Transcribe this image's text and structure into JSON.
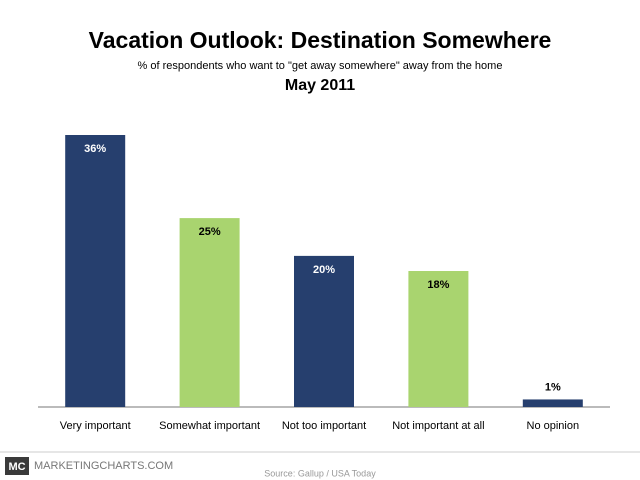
{
  "chart_data": {
    "type": "bar",
    "title": "Vacation Outlook: Destination Somewhere",
    "subtitle": "% of respondents who want to \"get away somewhere\" away from the home",
    "period": "May 2011",
    "categories": [
      "Very important",
      "Somewhat important",
      "Not too important",
      "Not important at all",
      "No opinion"
    ],
    "values": [
      36,
      25,
      20,
      18,
      1
    ],
    "value_labels": [
      "36%",
      "25%",
      "20%",
      "18%",
      "1%"
    ],
    "colors": [
      "#263f6e",
      "#a9d46f",
      "#263f6e",
      "#a9d46f",
      "#263f6e"
    ],
    "logo": "MC",
    "site": "MARKETINGCHARTS.COM",
    "source": "Source: Gallup / USA Today"
  }
}
